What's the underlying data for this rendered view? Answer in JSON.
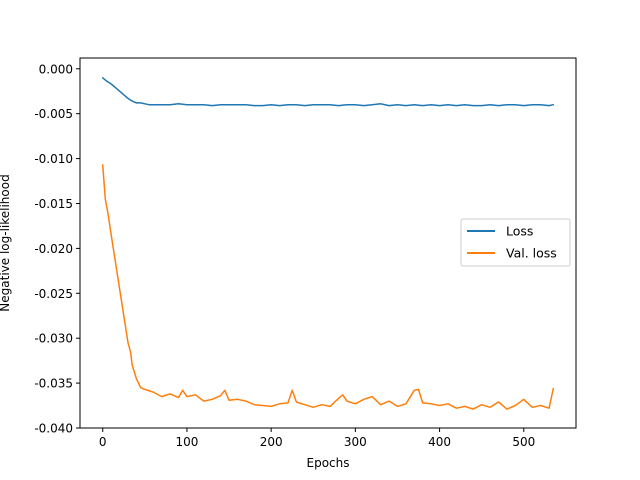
{
  "chart_data": {
    "type": "line",
    "title": "",
    "xlabel": "Epochs",
    "ylabel": "Negative log-likelihood",
    "xlim": [
      -27,
      562
    ],
    "ylim": [
      -0.04,
      0.0012
    ],
    "xticks": [
      0,
      100,
      200,
      300,
      400,
      500
    ],
    "xtick_labels": [
      "0",
      "100",
      "200",
      "300",
      "400",
      "500"
    ],
    "yticks": [
      0.0,
      -0.005,
      -0.01,
      -0.015,
      -0.02,
      -0.025,
      -0.03,
      -0.035,
      -0.04
    ],
    "ytick_labels": [
      "0.000",
      "-0.005",
      "-0.010",
      "-0.015",
      "-0.020",
      "-0.025",
      "-0.030",
      "-0.035",
      "-0.040"
    ],
    "grid": false,
    "legend_position": "center-right",
    "series": [
      {
        "name": "Loss",
        "color": "#1f77b4",
        "x": [
          0,
          5,
          10,
          15,
          20,
          25,
          30,
          35,
          40,
          45,
          50,
          55,
          60,
          70,
          80,
          90,
          100,
          110,
          120,
          130,
          140,
          150,
          160,
          170,
          180,
          190,
          200,
          210,
          220,
          230,
          240,
          250,
          260,
          270,
          280,
          290,
          300,
          310,
          320,
          330,
          340,
          350,
          360,
          370,
          380,
          390,
          400,
          410,
          420,
          430,
          440,
          450,
          460,
          470,
          480,
          490,
          500,
          510,
          520,
          530,
          535
        ],
        "y": [
          -0.001,
          -0.0014,
          -0.0017,
          -0.0021,
          -0.0025,
          -0.0029,
          -0.0033,
          -0.0036,
          -0.0038,
          -0.0038,
          -0.0039,
          -0.004,
          -0.004,
          -0.004,
          -0.004,
          -0.0039,
          -0.004,
          -0.004,
          -0.004,
          -0.0041,
          -0.004,
          -0.004,
          -0.004,
          -0.004,
          -0.0041,
          -0.0041,
          -0.004,
          -0.0041,
          -0.004,
          -0.004,
          -0.0041,
          -0.004,
          -0.004,
          -0.004,
          -0.0041,
          -0.004,
          -0.004,
          -0.0041,
          -0.004,
          -0.0039,
          -0.0041,
          -0.004,
          -0.0041,
          -0.004,
          -0.0041,
          -0.004,
          -0.0041,
          -0.004,
          -0.0041,
          -0.004,
          -0.0041,
          -0.0041,
          -0.004,
          -0.0041,
          -0.004,
          -0.004,
          -0.0041,
          -0.004,
          -0.004,
          -0.0041,
          -0.004
        ]
      },
      {
        "name": "Val. loss",
        "color": "#ff7f0e",
        "x": [
          0,
          3,
          6,
          10,
          15,
          20,
          25,
          30,
          33,
          35,
          40,
          45,
          50,
          60,
          70,
          80,
          90,
          95,
          100,
          110,
          120,
          130,
          140,
          145,
          150,
          160,
          170,
          180,
          190,
          200,
          210,
          220,
          225,
          230,
          240,
          250,
          260,
          270,
          280,
          285,
          290,
          300,
          310,
          320,
          330,
          340,
          350,
          360,
          370,
          375,
          380,
          390,
          400,
          410,
          420,
          430,
          440,
          450,
          460,
          470,
          480,
          490,
          500,
          510,
          520,
          530,
          535
        ],
        "y": [
          -0.0107,
          -0.0145,
          -0.016,
          -0.0185,
          -0.0215,
          -0.0245,
          -0.0275,
          -0.0305,
          -0.0315,
          -0.033,
          -0.0345,
          -0.0355,
          -0.0357,
          -0.036,
          -0.0365,
          -0.0362,
          -0.0366,
          -0.0358,
          -0.0365,
          -0.0363,
          -0.037,
          -0.0368,
          -0.0364,
          -0.0358,
          -0.0369,
          -0.0368,
          -0.037,
          -0.0374,
          -0.0375,
          -0.0376,
          -0.0373,
          -0.0372,
          -0.0358,
          -0.0371,
          -0.0374,
          -0.0377,
          -0.0374,
          -0.0376,
          -0.0367,
          -0.0363,
          -0.037,
          -0.0373,
          -0.0368,
          -0.0365,
          -0.0374,
          -0.037,
          -0.0376,
          -0.0373,
          -0.0358,
          -0.0357,
          -0.0372,
          -0.0373,
          -0.0375,
          -0.0373,
          -0.0378,
          -0.0376,
          -0.0379,
          -0.0374,
          -0.0377,
          -0.0371,
          -0.0379,
          -0.0375,
          -0.0368,
          -0.0377,
          -0.0375,
          -0.0378,
          -0.0356
        ]
      }
    ]
  }
}
